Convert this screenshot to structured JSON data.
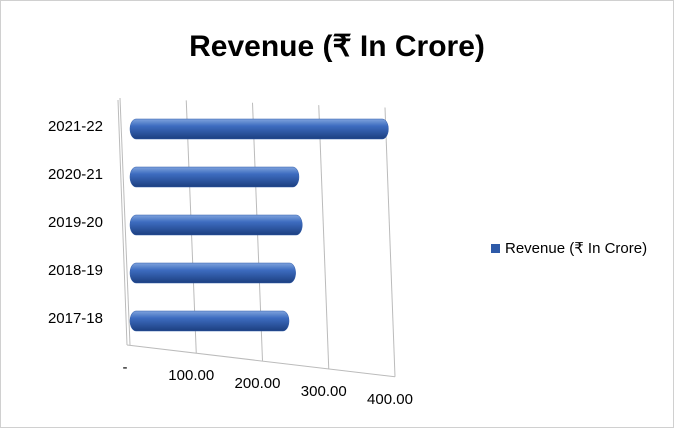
{
  "chart_data": {
    "type": "bar",
    "orientation": "horizontal",
    "title": "Revenue (₹ In Crore)",
    "categories": [
      "2017-18",
      "2018-19",
      "2019-20",
      "2020-21",
      "2021-22"
    ],
    "series": [
      {
        "name": "Revenue (₹ In Crore)",
        "color": "#2e5aa8",
        "values": [
          240,
          250,
          260,
          255,
          390
        ]
      }
    ],
    "xlim": [
      0,
      400
    ],
    "xticks": [
      {
        "value": 0,
        "label": "-"
      },
      {
        "value": 100,
        "label": "100.00"
      },
      {
        "value": 200,
        "label": "200.00"
      },
      {
        "value": 300,
        "label": "300.00"
      },
      {
        "value": 400,
        "label": "400.00"
      }
    ],
    "grid": true,
    "legend": "right"
  }
}
